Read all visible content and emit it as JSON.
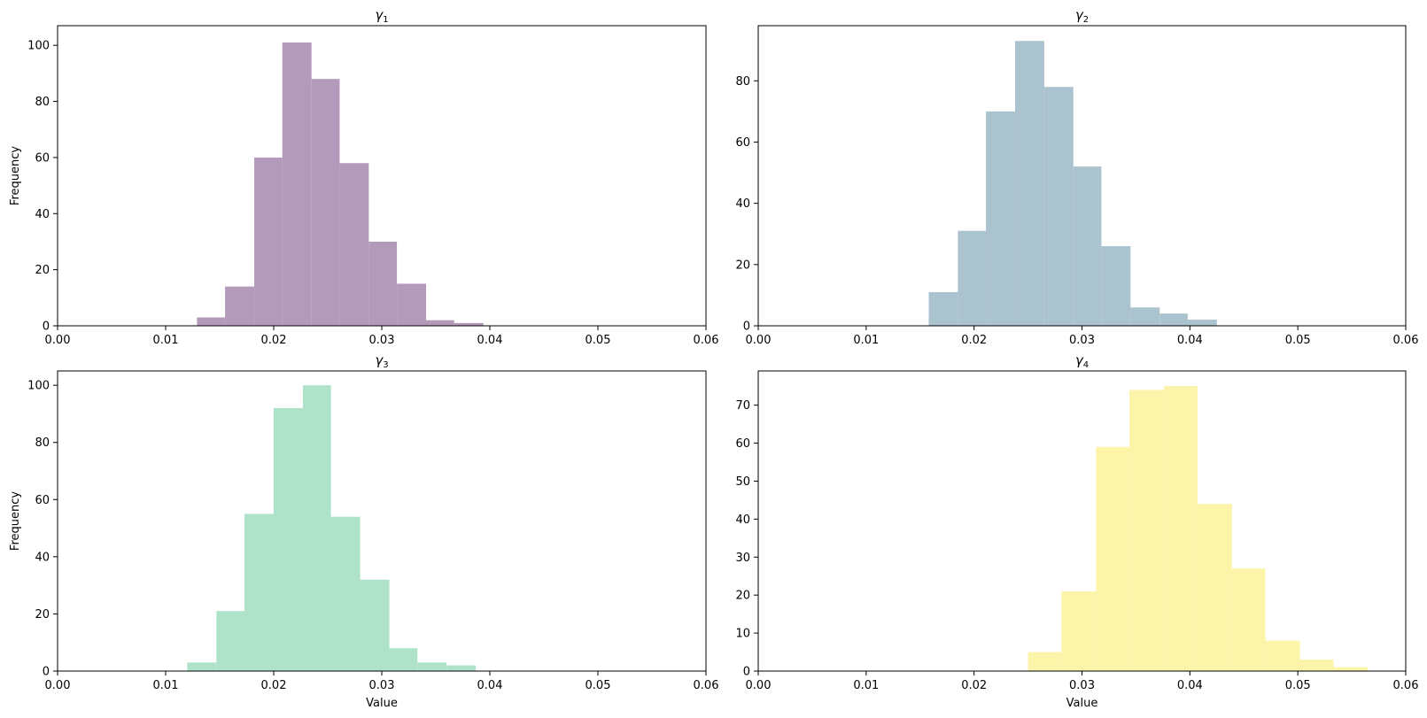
{
  "chart_data": [
    {
      "type": "histogram",
      "title_symbol": "γ",
      "title_subscript": "1",
      "color": "#b49aba",
      "xlabel": "",
      "ylabel": "Frequency",
      "xlim": [
        0,
        0.06
      ],
      "ylim": [
        0,
        107
      ],
      "xticks": [
        "0.00",
        "0.01",
        "0.02",
        "0.03",
        "0.04",
        "0.05",
        "0.06"
      ],
      "yticks": [
        "0",
        "20",
        "40",
        "60",
        "80",
        "100"
      ],
      "ytick_values": [
        0,
        20,
        40,
        60,
        80,
        100
      ],
      "bins": [
        {
          "x0": 0.0129,
          "x1": 0.0155,
          "value": 3
        },
        {
          "x0": 0.0155,
          "x1": 0.0182,
          "value": 14
        },
        {
          "x0": 0.0182,
          "x1": 0.0208,
          "value": 60
        },
        {
          "x0": 0.0208,
          "x1": 0.0235,
          "value": 101
        },
        {
          "x0": 0.0235,
          "x1": 0.0261,
          "value": 88
        },
        {
          "x0": 0.0261,
          "x1": 0.0288,
          "value": 58
        },
        {
          "x0": 0.0288,
          "x1": 0.0314,
          "value": 30
        },
        {
          "x0": 0.0314,
          "x1": 0.0341,
          "value": 15
        },
        {
          "x0": 0.0341,
          "x1": 0.0367,
          "value": 2
        },
        {
          "x0": 0.0367,
          "x1": 0.0394,
          "value": 1
        }
      ]
    },
    {
      "type": "histogram",
      "title_symbol": "γ",
      "title_subscript": "2",
      "color": "#abc2cf",
      "xlabel": "",
      "ylabel": "",
      "xlim": [
        0,
        0.06
      ],
      "ylim": [
        0,
        98
      ],
      "xticks": [
        "0.00",
        "0.01",
        "0.02",
        "0.03",
        "0.04",
        "0.05",
        "0.06"
      ],
      "yticks": [
        "0",
        "20",
        "40",
        "60",
        "80"
      ],
      "ytick_values": [
        0,
        20,
        40,
        60,
        80
      ],
      "bins": [
        {
          "x0": 0.0158,
          "x1": 0.0185,
          "value": 11
        },
        {
          "x0": 0.0185,
          "x1": 0.0211,
          "value": 31
        },
        {
          "x0": 0.0211,
          "x1": 0.0238,
          "value": 70
        },
        {
          "x0": 0.0238,
          "x1": 0.0265,
          "value": 93
        },
        {
          "x0": 0.0265,
          "x1": 0.0292,
          "value": 78
        },
        {
          "x0": 0.0292,
          "x1": 0.0318,
          "value": 52
        },
        {
          "x0": 0.0318,
          "x1": 0.0345,
          "value": 26
        },
        {
          "x0": 0.0345,
          "x1": 0.0372,
          "value": 6
        },
        {
          "x0": 0.0372,
          "x1": 0.0398,
          "value": 4
        },
        {
          "x0": 0.0398,
          "x1": 0.0425,
          "value": 2
        }
      ]
    },
    {
      "type": "histogram",
      "title_symbol": "γ",
      "title_subscript": "3",
      "color": "#aee3ca",
      "xlabel": "Value",
      "ylabel": "Frequency",
      "xlim": [
        0,
        0.06
      ],
      "ylim": [
        0,
        105
      ],
      "xticks": [
        "0.00",
        "0.01",
        "0.02",
        "0.03",
        "0.04",
        "0.05",
        "0.06"
      ],
      "yticks": [
        "0",
        "20",
        "40",
        "60",
        "80",
        "100"
      ],
      "ytick_values": [
        0,
        20,
        40,
        60,
        80,
        100
      ],
      "bins": [
        {
          "x0": 0.012,
          "x1": 0.0147,
          "value": 3
        },
        {
          "x0": 0.0147,
          "x1": 0.0173,
          "value": 21
        },
        {
          "x0": 0.0173,
          "x1": 0.02,
          "value": 55
        },
        {
          "x0": 0.02,
          "x1": 0.0227,
          "value": 92
        },
        {
          "x0": 0.0227,
          "x1": 0.0253,
          "value": 100
        },
        {
          "x0": 0.0253,
          "x1": 0.028,
          "value": 54
        },
        {
          "x0": 0.028,
          "x1": 0.0307,
          "value": 32
        },
        {
          "x0": 0.0307,
          "x1": 0.0333,
          "value": 8
        },
        {
          "x0": 0.0333,
          "x1": 0.036,
          "value": 3
        },
        {
          "x0": 0.036,
          "x1": 0.0387,
          "value": 2
        }
      ]
    },
    {
      "type": "histogram",
      "title_symbol": "γ",
      "title_subscript": "4",
      "color": "#fcf4a8",
      "xlabel": "Value",
      "ylabel": "",
      "xlim": [
        0,
        0.06
      ],
      "ylim": [
        0,
        79
      ],
      "xticks": [
        "0.00",
        "0.01",
        "0.02",
        "0.03",
        "0.04",
        "0.05",
        "0.06"
      ],
      "yticks": [
        "0",
        "10",
        "20",
        "30",
        "40",
        "50",
        "60",
        "70"
      ],
      "ytick_values": [
        0,
        10,
        20,
        30,
        40,
        50,
        60,
        70
      ],
      "bins": [
        {
          "x0": 0.025,
          "x1": 0.0281,
          "value": 5
        },
        {
          "x0": 0.0281,
          "x1": 0.0313,
          "value": 21
        },
        {
          "x0": 0.0313,
          "x1": 0.0344,
          "value": 59
        },
        {
          "x0": 0.0344,
          "x1": 0.0376,
          "value": 74
        },
        {
          "x0": 0.0376,
          "x1": 0.0407,
          "value": 75
        },
        {
          "x0": 0.0407,
          "x1": 0.0439,
          "value": 44
        },
        {
          "x0": 0.0439,
          "x1": 0.047,
          "value": 27
        },
        {
          "x0": 0.047,
          "x1": 0.0502,
          "value": 8
        },
        {
          "x0": 0.0502,
          "x1": 0.0533,
          "value": 3
        },
        {
          "x0": 0.0533,
          "x1": 0.0565,
          "value": 1
        }
      ]
    }
  ]
}
